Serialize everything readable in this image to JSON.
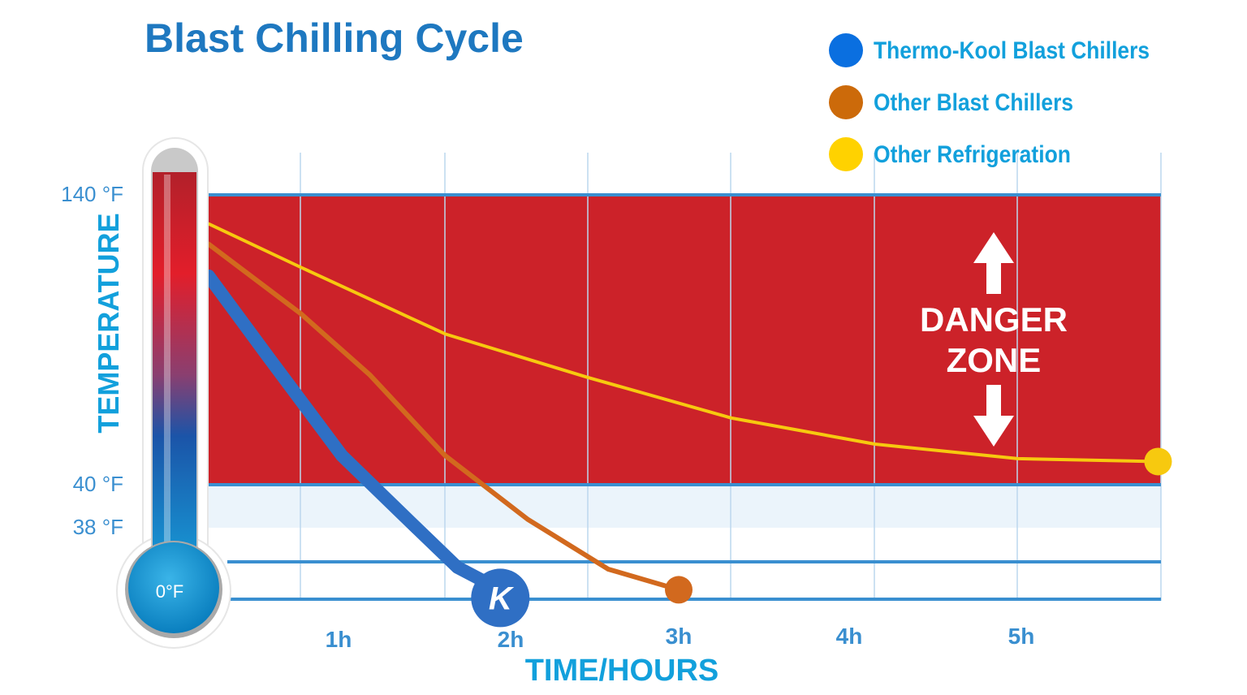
{
  "chart_data": {
    "type": "line",
    "title": "Blast Chilling Cycle",
    "xlabel": "TIME/HOURS",
    "ylabel": "TEMPERATURE",
    "x_ticks": [
      {
        "value": 1,
        "label": "1h"
      },
      {
        "value": 2,
        "label": "2h"
      },
      {
        "value": 3,
        "label": "3h"
      },
      {
        "value": 4,
        "label": "4h"
      },
      {
        "value": 5,
        "label": "5h"
      }
    ],
    "y_ticks": [
      {
        "value": 140,
        "label": "140 °F"
      },
      {
        "value": 40,
        "label": "40 °F"
      },
      {
        "value": 38,
        "label": "38 °F"
      }
    ],
    "thermometer_label": "0°F",
    "danger_zone": {
      "label_line1": "DANGER",
      "label_line2": "ZONE",
      "from": 40,
      "to": 140,
      "color": "#cc2229"
    },
    "legend_position": "top-right",
    "grid": true,
    "series": [
      {
        "name": "Thermo-Kool Blast Chillers",
        "color": "#2f6fc4",
        "marker": "K",
        "x": [
          0,
          0.46,
          1.02,
          1.4,
          1.69,
          1.94
        ],
        "y": [
          112,
          84,
          50,
          38.4,
          17,
          5
        ]
      },
      {
        "name": "Other Blast Chillers",
        "color": "#d2691e",
        "x": [
          0,
          0.71,
          1.18,
          1.62,
          2.1,
          2.58,
          3.0
        ],
        "y": [
          123,
          99,
          78,
          50,
          38.4,
          16,
          5
        ]
      },
      {
        "name": "Other Refrigeration",
        "color": "#f7c90f",
        "x": [
          0,
          0.71,
          1.62,
          2.46,
          3.31,
          4.15,
          4.98,
          5.81
        ],
        "y": [
          130,
          115,
          92,
          77,
          63,
          54,
          49,
          48
        ]
      }
    ]
  }
}
